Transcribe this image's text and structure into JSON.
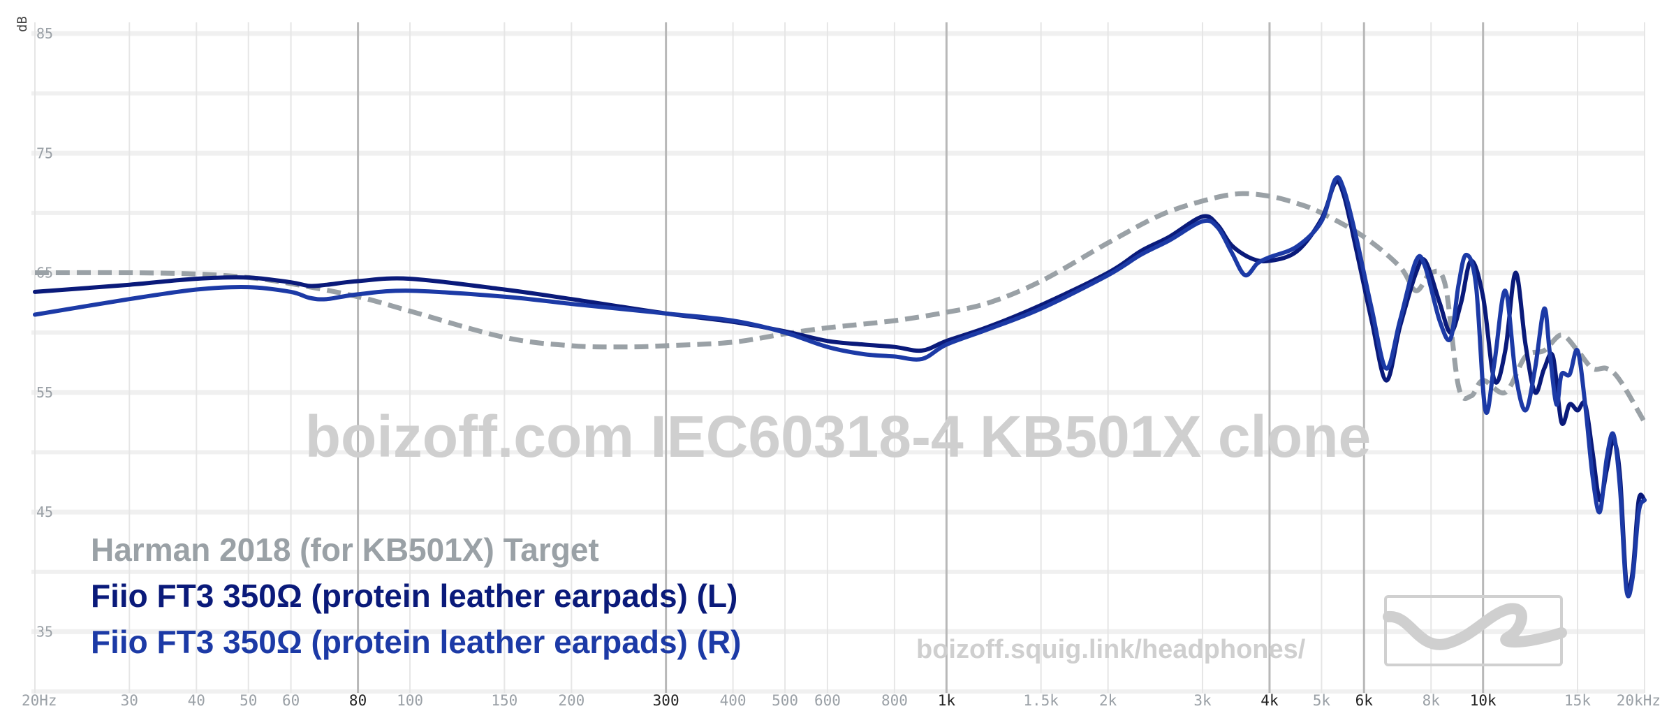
{
  "chart_data": {
    "type": "line",
    "xscale": "log",
    "xlim": [
      20,
      20000
    ],
    "ylim": [
      30,
      85
    ],
    "ylabel": "dB",
    "y_ticks": [
      {
        "v": 85,
        "label": "85"
      },
      {
        "v": 75,
        "label": "75"
      },
      {
        "v": 65,
        "label": "65"
      },
      {
        "v": 55,
        "label": "55"
      },
      {
        "v": 45,
        "label": "45"
      },
      {
        "v": 35,
        "label": "35"
      }
    ],
    "x_ticks": [
      {
        "v": 20,
        "label": "20Hz",
        "major": false
      },
      {
        "v": 30,
        "label": "30",
        "major": false
      },
      {
        "v": 40,
        "label": "40",
        "major": false
      },
      {
        "v": 50,
        "label": "50",
        "major": false
      },
      {
        "v": 60,
        "label": "60",
        "major": false
      },
      {
        "v": 80,
        "label": "80",
        "major": true
      },
      {
        "v": 100,
        "label": "100",
        "major": false
      },
      {
        "v": 150,
        "label": "150",
        "major": false
      },
      {
        "v": 200,
        "label": "200",
        "major": false
      },
      {
        "v": 300,
        "label": "300",
        "major": true
      },
      {
        "v": 400,
        "label": "400",
        "major": false
      },
      {
        "v": 500,
        "label": "500",
        "major": false
      },
      {
        "v": 600,
        "label": "600",
        "major": false
      },
      {
        "v": 800,
        "label": "800",
        "major": false
      },
      {
        "v": 1000,
        "label": "1k",
        "major": true
      },
      {
        "v": 1500,
        "label": "1.5k",
        "major": false
      },
      {
        "v": 2000,
        "label": "2k",
        "major": false
      },
      {
        "v": 3000,
        "label": "3k",
        "major": false
      },
      {
        "v": 4000,
        "label": "4k",
        "major": true
      },
      {
        "v": 5000,
        "label": "5k",
        "major": false
      },
      {
        "v": 6000,
        "label": "6k",
        "major": true
      },
      {
        "v": 8000,
        "label": "8k",
        "major": false
      },
      {
        "v": 10000,
        "label": "10k",
        "major": true
      },
      {
        "v": 15000,
        "label": "15k",
        "major": false
      },
      {
        "v": 20000,
        "label": "20kHz",
        "major": false
      }
    ],
    "watermark": "boizoff.com IEC60318-4 KB501X clone",
    "url": "boizoff.squig.link/headphones/",
    "legend_placement": "bottom-left",
    "series": [
      {
        "name": "Harman 2018 (for KB501X) Target",
        "color": "#9aa1a6",
        "dashed": true,
        "points": [
          [
            20,
            65.0
          ],
          [
            30,
            65.0
          ],
          [
            40,
            64.9
          ],
          [
            50,
            64.6
          ],
          [
            60,
            64.1
          ],
          [
            80,
            63.0
          ],
          [
            100,
            61.8
          ],
          [
            150,
            59.6
          ],
          [
            200,
            58.9
          ],
          [
            250,
            58.8
          ],
          [
            300,
            58.9
          ],
          [
            400,
            59.2
          ],
          [
            500,
            59.9
          ],
          [
            600,
            60.4
          ],
          [
            800,
            61.0
          ],
          [
            1000,
            61.7
          ],
          [
            1200,
            62.5
          ],
          [
            1500,
            64.3
          ],
          [
            2000,
            67.5
          ],
          [
            2500,
            69.8
          ],
          [
            3000,
            71.0
          ],
          [
            3500,
            71.6
          ],
          [
            4000,
            71.4
          ],
          [
            4500,
            70.8
          ],
          [
            5000,
            70.0
          ],
          [
            6000,
            68.0
          ],
          [
            7000,
            65.5
          ],
          [
            7500,
            63.5
          ],
          [
            8000,
            65.0
          ],
          [
            8500,
            64.0
          ],
          [
            9000,
            55.5
          ],
          [
            9500,
            54.7
          ],
          [
            10000,
            56.0
          ],
          [
            11000,
            55.0
          ],
          [
            12000,
            58.0
          ],
          [
            13000,
            58.5
          ],
          [
            14000,
            59.8
          ],
          [
            15000,
            58.5
          ],
          [
            16000,
            57.0
          ],
          [
            17000,
            57.0
          ],
          [
            18000,
            56.0
          ],
          [
            20000,
            52.5
          ]
        ]
      },
      {
        "name": "Fiio FT3 350Ω (protein leather earpads) (L)",
        "color": "#0a1a7a",
        "dashed": false,
        "points": [
          [
            20,
            63.4
          ],
          [
            30,
            64.0
          ],
          [
            40,
            64.5
          ],
          [
            50,
            64.6
          ],
          [
            60,
            64.2
          ],
          [
            65,
            63.9
          ],
          [
            70,
            64.0
          ],
          [
            80,
            64.3
          ],
          [
            100,
            64.5
          ],
          [
            150,
            63.6
          ],
          [
            200,
            62.8
          ],
          [
            300,
            61.6
          ],
          [
            400,
            60.9
          ],
          [
            500,
            60.1
          ],
          [
            600,
            59.3
          ],
          [
            700,
            59.0
          ],
          [
            800,
            58.8
          ],
          [
            900,
            58.5
          ],
          [
            1000,
            59.3
          ],
          [
            1200,
            60.5
          ],
          [
            1500,
            62.3
          ],
          [
            2000,
            65.0
          ],
          [
            2300,
            66.8
          ],
          [
            2600,
            68.0
          ],
          [
            3000,
            69.7
          ],
          [
            3200,
            69.0
          ],
          [
            3400,
            67.3
          ],
          [
            3700,
            66.2
          ],
          [
            4000,
            66.0
          ],
          [
            4500,
            66.8
          ],
          [
            5000,
            69.5
          ],
          [
            5300,
            72.5
          ],
          [
            5500,
            71.5
          ],
          [
            5800,
            67.0
          ],
          [
            6200,
            61.0
          ],
          [
            6600,
            56.0
          ],
          [
            7000,
            60.5
          ],
          [
            7500,
            65.0
          ],
          [
            7800,
            66.0
          ],
          [
            8300,
            62.5
          ],
          [
            8700,
            60.0
          ],
          [
            9100,
            62.5
          ],
          [
            9500,
            66.0
          ],
          [
            10000,
            63.0
          ],
          [
            10500,
            56.0
          ],
          [
            11000,
            58.5
          ],
          [
            11500,
            65.0
          ],
          [
            12000,
            59.0
          ],
          [
            12500,
            55.0
          ],
          [
            13000,
            57.0
          ],
          [
            13500,
            58.0
          ],
          [
            14000,
            52.5
          ],
          [
            14500,
            54.0
          ],
          [
            15000,
            53.5
          ],
          [
            15500,
            54.0
          ],
          [
            16000,
            50.0
          ],
          [
            16500,
            46.0
          ],
          [
            17000,
            48.5
          ],
          [
            17500,
            51.0
          ],
          [
            18000,
            48.0
          ],
          [
            18500,
            39.0
          ],
          [
            19000,
            40.0
          ],
          [
            19500,
            46.0
          ],
          [
            20000,
            46.0
          ]
        ]
      },
      {
        "name": "Fiio FT3 350Ω (protein leather earpads) (R)",
        "color": "#1c3aa6",
        "dashed": false,
        "points": [
          [
            20,
            61.5
          ],
          [
            30,
            62.8
          ],
          [
            40,
            63.6
          ],
          [
            50,
            63.8
          ],
          [
            60,
            63.4
          ],
          [
            65,
            62.9
          ],
          [
            70,
            62.8
          ],
          [
            80,
            63.2
          ],
          [
            100,
            63.5
          ],
          [
            150,
            63.0
          ],
          [
            200,
            62.4
          ],
          [
            300,
            61.6
          ],
          [
            400,
            61.0
          ],
          [
            500,
            60.0
          ],
          [
            600,
            58.8
          ],
          [
            700,
            58.2
          ],
          [
            800,
            58.0
          ],
          [
            900,
            57.8
          ],
          [
            1000,
            59.0
          ],
          [
            1200,
            60.3
          ],
          [
            1500,
            62.0
          ],
          [
            2000,
            64.8
          ],
          [
            2300,
            66.5
          ],
          [
            2600,
            67.7
          ],
          [
            3000,
            69.3
          ],
          [
            3200,
            68.8
          ],
          [
            3400,
            66.7
          ],
          [
            3600,
            64.8
          ],
          [
            3800,
            65.8
          ],
          [
            4000,
            66.3
          ],
          [
            4500,
            67.2
          ],
          [
            5000,
            69.3
          ],
          [
            5300,
            72.8
          ],
          [
            5500,
            72.0
          ],
          [
            5800,
            68.0
          ],
          [
            6200,
            62.0
          ],
          [
            6600,
            57.0
          ],
          [
            7000,
            61.0
          ],
          [
            7500,
            66.0
          ],
          [
            7800,
            65.5
          ],
          [
            8300,
            61.0
          ],
          [
            8700,
            59.5
          ],
          [
            9000,
            64.0
          ],
          [
            9300,
            66.5
          ],
          [
            9700,
            64.0
          ],
          [
            10100,
            53.5
          ],
          [
            10500,
            57.5
          ],
          [
            11000,
            63.5
          ],
          [
            11500,
            56.5
          ],
          [
            12000,
            53.5
          ],
          [
            12500,
            57.0
          ],
          [
            13000,
            62.0
          ],
          [
            13300,
            58.5
          ],
          [
            13700,
            54.0
          ],
          [
            14000,
            56.5
          ],
          [
            14500,
            56.5
          ],
          [
            15000,
            58.5
          ],
          [
            15500,
            54.0
          ],
          [
            16000,
            48.0
          ],
          [
            16500,
            45.0
          ],
          [
            17000,
            49.5
          ],
          [
            17500,
            51.5
          ],
          [
            18000,
            47.0
          ],
          [
            18500,
            38.5
          ],
          [
            19000,
            39.5
          ],
          [
            19500,
            45.0
          ],
          [
            20000,
            46.0
          ]
        ]
      }
    ]
  }
}
